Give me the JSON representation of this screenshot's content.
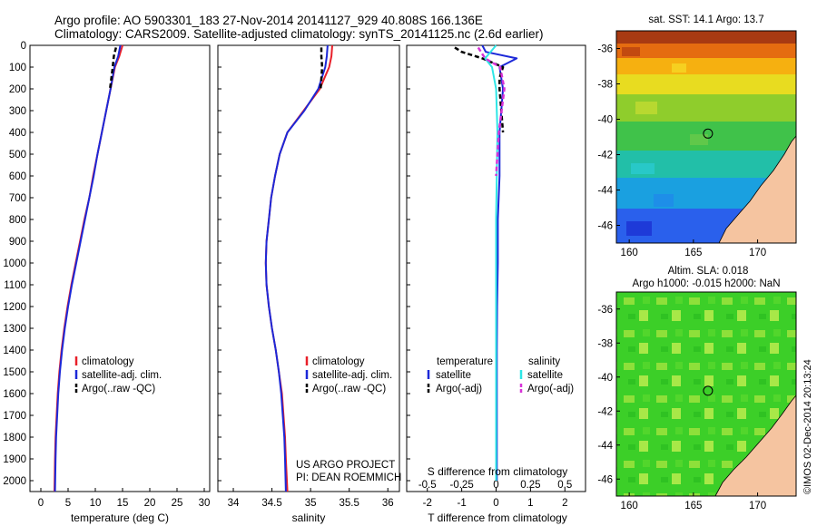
{
  "header": {
    "title_line1": "Argo profile: AO 5903301_183 27-Nov-2014 20141127_929 40.808S 166.136E",
    "title_line2": "Climatology: CARS2009. Satellite-adjusted climatology: synTS_20141125.nc (2.6d earlier)"
  },
  "colors": {
    "climatology": "#e8202a",
    "satellite": "#1c28d8",
    "argo": "#000000",
    "cyan": "#2ee6e6",
    "magenta": "#d832d8",
    "land": "#f5c4a0",
    "sla_green": "#33cc22"
  },
  "credits": {
    "project": "US ARGO PROJECT",
    "pi": "PI: DEAN ROEMMICH",
    "stamp": "©IMOS 02-Dec-2014 20:13:24"
  },
  "chart_data": [
    {
      "id": "temperature",
      "type": "line",
      "xlabel": "temperature (deg C)",
      "xlim": [
        -2,
        31
      ],
      "xticks": [
        0,
        5,
        10,
        15,
        20,
        25,
        30
      ],
      "ylim": [
        0,
        2050
      ],
      "yticks": [
        0,
        100,
        200,
        300,
        400,
        500,
        600,
        700,
        800,
        900,
        1000,
        1100,
        1200,
        1300,
        1400,
        1500,
        1600,
        1700,
        1800,
        1900,
        2000
      ],
      "y_reversed": true,
      "legend": [
        "climatology",
        "satellite-adj. clim.",
        "Argo(..raw -QC)"
      ],
      "series": [
        {
          "name": "climatology",
          "x": [
            15.0,
            14.4,
            13.6,
            12.8,
            12.0,
            11.2,
            10.4,
            9.6,
            8.9,
            8.0,
            7.2,
            6.4,
            5.6,
            4.9,
            4.3,
            3.8,
            3.4,
            3.1,
            2.9,
            2.7,
            2.6,
            2.5
          ],
          "y": [
            0,
            50,
            100,
            200,
            300,
            400,
            500,
            600,
            700,
            800,
            900,
            1000,
            1100,
            1200,
            1300,
            1400,
            1500,
            1600,
            1700,
            1800,
            1900,
            2050
          ]
        },
        {
          "name": "satellite-adj. clim.",
          "x": [
            14.6,
            14.2,
            13.5,
            12.8,
            12.0,
            11.2,
            10.4,
            9.7,
            8.9,
            8.1,
            7.3,
            6.5,
            5.7,
            5.0,
            4.4,
            3.9,
            3.5,
            3.2,
            3.0,
            2.8,
            2.7,
            2.6
          ],
          "y": [
            0,
            50,
            100,
            200,
            300,
            400,
            500,
            600,
            700,
            800,
            900,
            1000,
            1100,
            1200,
            1300,
            1400,
            1500,
            1600,
            1700,
            1800,
            1900,
            2050
          ]
        },
        {
          "name": "Argo(..raw -QC)",
          "x": [
            13.8,
            13.4,
            13.2,
            12.7
          ],
          "y": [
            10,
            50,
            100,
            200
          ]
        }
      ]
    },
    {
      "id": "salinity",
      "type": "line",
      "xlabel": "salinity",
      "xlim": [
        33.8,
        36.15
      ],
      "xticks": [
        34,
        34.5,
        35,
        35.5,
        36
      ],
      "ylim": [
        0,
        2050
      ],
      "y_reversed": true,
      "legend": [
        "climatology",
        "satellite-adj. clim.",
        "Argo(..raw -QC)"
      ],
      "series": [
        {
          "name": "climatology",
          "x": [
            35.28,
            35.27,
            35.24,
            35.12,
            34.91,
            34.7,
            34.6,
            34.54,
            34.49,
            34.46,
            34.43,
            34.42,
            34.43,
            34.46,
            34.5,
            34.55,
            34.59,
            34.63,
            34.65,
            34.67,
            34.68,
            34.7
          ],
          "y": [
            0,
            50,
            100,
            200,
            300,
            400,
            500,
            600,
            700,
            800,
            900,
            1000,
            1100,
            1200,
            1300,
            1400,
            1500,
            1600,
            1700,
            1800,
            1900,
            2050
          ]
        },
        {
          "name": "satellite-adj. clim.",
          "x": [
            35.22,
            35.21,
            35.19,
            35.1,
            34.92,
            34.7,
            34.6,
            34.54,
            34.49,
            34.46,
            34.43,
            34.42,
            34.43,
            34.46,
            34.5,
            34.55,
            34.59,
            34.62,
            34.64,
            34.66,
            34.67,
            34.68
          ],
          "y": [
            0,
            50,
            100,
            200,
            300,
            400,
            500,
            600,
            700,
            800,
            900,
            1000,
            1100,
            1200,
            1300,
            1400,
            1500,
            1600,
            1700,
            1800,
            1900,
            2050
          ]
        },
        {
          "name": "Argo(..raw -QC)",
          "x": [
            35.14,
            35.14,
            35.15,
            35.13
          ],
          "y": [
            10,
            50,
            100,
            200
          ]
        }
      ]
    },
    {
      "id": "difference",
      "type": "line",
      "xlabel": "T difference from climatology",
      "xlabel_top": "S difference from climatology",
      "xlim": [
        -2.6,
        2.6
      ],
      "xticks": [
        -2,
        -1,
        0,
        1,
        2
      ],
      "xtick_labels": [
        "-2",
        "-1",
        "0",
        "1",
        "2"
      ],
      "xticks_s": [
        -0.5,
        -0.25,
        0,
        0.25,
        0.5
      ],
      "xtick_labels_s": [
        "-0.5",
        "-0.25",
        "0",
        "0.25",
        "0.5"
      ],
      "ylim": [
        0,
        2050
      ],
      "y_reversed": true,
      "legend_headers": [
        "temperature",
        "salinity"
      ],
      "legend": [
        "satellite",
        "Argo(-adj)",
        "satellite",
        "Argo(-adj)"
      ],
      "series": [
        {
          "name": "satellite",
          "x": [
            -0.4,
            -0.3,
            0.6,
            0.1,
            0.2,
            0.1,
            0.1,
            0.05,
            0.05,
            0.03,
            0.02,
            0.02,
            0.02
          ],
          "y": [
            0,
            30,
            60,
            100,
            200,
            400,
            600,
            800,
            1000,
            1200,
            1400,
            1700,
            2000
          ]
        },
        {
          "name": "Argo(-adj)",
          "x": [
            -1.2,
            -1.0,
            -0.4,
            0.2,
            0.1,
            0.1,
            0.2
          ],
          "y": [
            10,
            30,
            60,
            100,
            150,
            200,
            400
          ]
        },
        {
          "name": "satellite",
          "x": [
            0.0,
            -0.08,
            -0.03,
            0.0,
            0.01,
            0.0,
            0.0,
            0.0,
            0.0
          ],
          "y": [
            0,
            60,
            100,
            200,
            400,
            800,
            1200,
            1600,
            2000
          ]
        },
        {
          "name": "Argo(-adj)",
          "x": [
            -0.13,
            -0.08,
            0.03,
            0.06,
            0.02,
            0.0
          ],
          "y": [
            10,
            60,
            100,
            200,
            400,
            600
          ]
        }
      ]
    },
    {
      "id": "sst_map",
      "type": "heatmap",
      "title": "sat. SST: 14.1  Argo: 13.7",
      "xlim": [
        159,
        173
      ],
      "ylim": [
        -47,
        -35
      ],
      "xticks": [
        160,
        165,
        170
      ],
      "yticks": [
        -36,
        -38,
        -40,
        -42,
        -44,
        -46
      ],
      "marker": {
        "lon": 166.136,
        "lat": -40.808
      }
    },
    {
      "id": "sla_map",
      "type": "heatmap",
      "title": "Altim. SLA: 0.018",
      "subtitle": "Argo h1000: -0.015 h2000: NaN",
      "xlim": [
        159,
        173
      ],
      "ylim": [
        -47,
        -35
      ],
      "xticks": [
        160,
        165,
        170
      ],
      "yticks": [
        -36,
        -38,
        -40,
        -42,
        -44,
        -46
      ],
      "marker": {
        "lon": 166.136,
        "lat": -40.808
      }
    }
  ]
}
